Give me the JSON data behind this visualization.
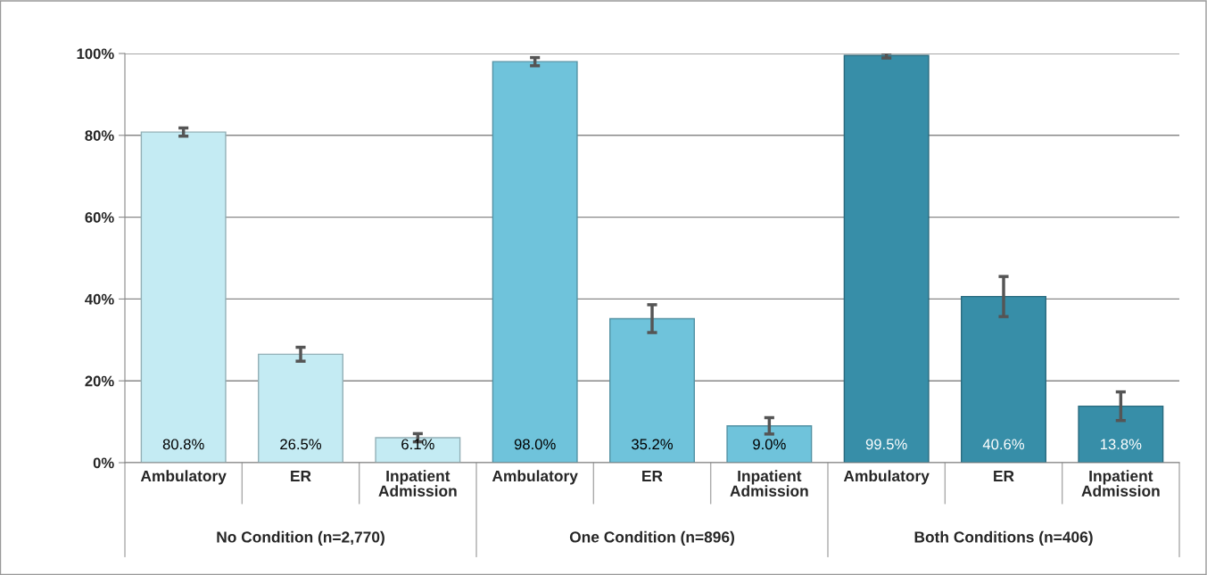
{
  "chart_data": {
    "type": "bar",
    "categories": [
      "Ambulatory",
      "ER",
      "Inpatient\nAdmission",
      "Ambulatory",
      "ER",
      "Inpatient\nAdmission",
      "Ambulatory",
      "ER",
      "Inpatient\nAdmission"
    ],
    "values": [
      80.8,
      26.5,
      6.1,
      98.0,
      35.2,
      9.0,
      99.5,
      40.6,
      13.8
    ],
    "errors": [
      1.0,
      1.7,
      1.0,
      1.0,
      3.4,
      2.0,
      0.6,
      4.9,
      3.5
    ],
    "value_labels": [
      "80.8%",
      "26.5%",
      "6.1%",
      "98.0%",
      "35.2%",
      "9.0%",
      "99.5%",
      "40.6%",
      "13.8%"
    ],
    "colors": [
      "#c4ebf3",
      "#c4ebf3",
      "#c4ebf3",
      "#6fc3db",
      "#6fc3db",
      "#6fc3db",
      "#378ea8",
      "#378ea8",
      "#378ea8"
    ],
    "ylim": [
      0,
      100
    ],
    "yticks": [
      {
        "value": 0,
        "label": "0%"
      },
      {
        "value": 20,
        "label": "20%"
      },
      {
        "value": 40,
        "label": "40%"
      },
      {
        "value": 60,
        "label": "60%"
      },
      {
        "value": 80,
        "label": "80%"
      },
      {
        "value": 100,
        "label": "100%"
      }
    ],
    "grid": "y",
    "annotations": [
      "No Condition (n=2,770)",
      "One Condition (n=896)",
      "Both Conditions (n=406)"
    ]
  }
}
